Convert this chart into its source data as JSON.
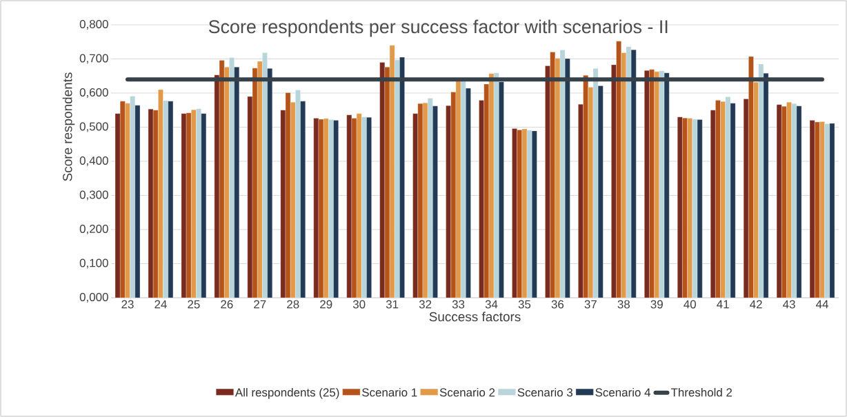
{
  "chart_data": {
    "type": "bar",
    "title": "Score respondents per success factor with scenarios - II",
    "xlabel": "Success factors",
    "ylabel": "Score respondents",
    "categories": [
      "23",
      "24",
      "25",
      "26",
      "27",
      "28",
      "29",
      "30",
      "31",
      "32",
      "33",
      "34",
      "35",
      "36",
      "37",
      "38",
      "39",
      "40",
      "41",
      "42",
      "43",
      "44"
    ],
    "series": [
      {
        "name": "All respondents (25)",
        "color": "#7b2a1e",
        "values": [
          0.54,
          0.553,
          0.54,
          0.653,
          0.59,
          0.55,
          0.526,
          0.536,
          0.69,
          0.54,
          0.563,
          0.579,
          0.496,
          0.68,
          0.567,
          0.683,
          0.666,
          0.53,
          0.55,
          0.583,
          0.566,
          0.52
        ]
      },
      {
        "name": "Scenario 1",
        "color": "#b5541a",
        "values": [
          0.576,
          0.55,
          0.542,
          0.696,
          0.673,
          0.601,
          0.523,
          0.526,
          0.676,
          0.569,
          0.603,
          0.626,
          0.492,
          0.72,
          0.652,
          0.752,
          0.669,
          0.527,
          0.579,
          0.707,
          0.561,
          0.515
        ]
      },
      {
        "name": "Scenario 2",
        "color": "#e09a4a",
        "values": [
          0.57,
          0.61,
          0.551,
          0.676,
          0.693,
          0.573,
          0.525,
          0.54,
          0.74,
          0.571,
          0.638,
          0.657,
          0.495,
          0.702,
          0.617,
          0.718,
          0.663,
          0.526,
          0.575,
          0.632,
          0.573,
          0.516
        ]
      },
      {
        "name": "Scenario 3",
        "color": "#b9d5dc",
        "values": [
          0.591,
          0.578,
          0.554,
          0.704,
          0.718,
          0.609,
          0.522,
          0.53,
          0.697,
          0.585,
          0.64,
          0.659,
          0.491,
          0.726,
          0.672,
          0.736,
          0.665,
          0.523,
          0.589,
          0.685,
          0.569,
          0.51
        ]
      },
      {
        "name": "Scenario 4",
        "color": "#223a55",
        "values": [
          0.564,
          0.576,
          0.54,
          0.676,
          0.672,
          0.576,
          0.52,
          0.529,
          0.705,
          0.562,
          0.614,
          0.633,
          0.489,
          0.701,
          0.621,
          0.727,
          0.659,
          0.522,
          0.57,
          0.658,
          0.562,
          0.511
        ]
      },
      {
        "name": "Threshold 2",
        "type": "line",
        "color": "#37414a",
        "values": [
          0.64,
          0.64,
          0.64,
          0.64,
          0.64,
          0.64,
          0.64,
          0.64,
          0.64,
          0.64,
          0.64,
          0.64,
          0.64,
          0.64,
          0.64,
          0.64,
          0.64,
          0.64,
          0.64,
          0.64,
          0.64,
          0.64
        ]
      }
    ],
    "ylim": [
      0,
      0.8
    ],
    "yticks": [
      {
        "value": 0,
        "label": "0,000"
      },
      {
        "value": 0.1,
        "label": "0,100"
      },
      {
        "value": 0.2,
        "label": "0,200"
      },
      {
        "value": 0.3,
        "label": "0,300"
      },
      {
        "value": 0.4,
        "label": "0,400"
      },
      {
        "value": 0.5,
        "label": "0,500"
      },
      {
        "value": 0.6,
        "label": "0,600"
      },
      {
        "value": 0.7,
        "label": "0,700"
      },
      {
        "value": 0.8,
        "label": "0,800"
      }
    ],
    "grid": "y",
    "legend": "bottom"
  }
}
